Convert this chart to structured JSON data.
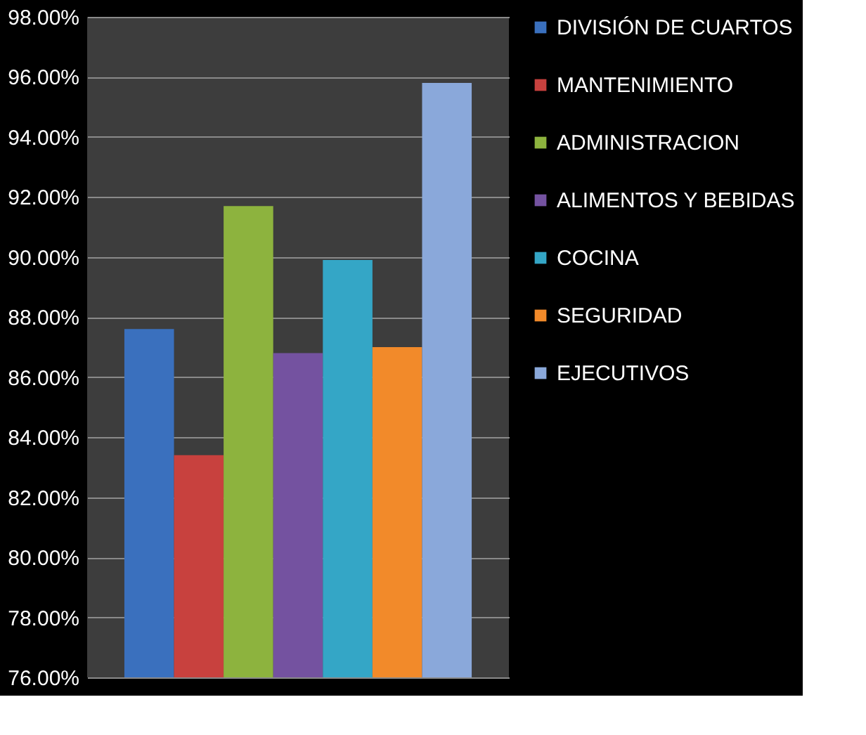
{
  "chart_data": {
    "type": "bar",
    "categories": [
      null
    ],
    "series": [
      {
        "name": "DIVISIÓN DE CUARTOS",
        "color": "#3a70be",
        "values": [
          87.6
        ]
      },
      {
        "name": "MANTENIMIENTO",
        "color": "#c8413e",
        "values": [
          83.4
        ]
      },
      {
        "name": "ADMINISTRACION",
        "color": "#8db33e",
        "values": [
          91.7
        ]
      },
      {
        "name": "ALIMENTOS Y BEBIDAS",
        "color": "#7452a0",
        "values": [
          86.8
        ]
      },
      {
        "name": "COCINA",
        "color": "#34a6c6",
        "values": [
          89.9
        ]
      },
      {
        "name": "SEGURIDAD",
        "color": "#f28a2a",
        "values": [
          87.0
        ]
      },
      {
        "name": "EJECUTIVOS",
        "color": "#8aa8da",
        "values": [
          95.8
        ]
      }
    ],
    "ylim": [
      76,
      98
    ],
    "yticks": [
      {
        "value": 76,
        "label": "76.00%"
      },
      {
        "value": 78,
        "label": "78.00%"
      },
      {
        "value": 80,
        "label": "80.00%"
      },
      {
        "value": 82,
        "label": "82.00%"
      },
      {
        "value": 84,
        "label": "84.00%"
      },
      {
        "value": 86,
        "label": "86.00%"
      },
      {
        "value": 88,
        "label": "88.00%"
      },
      {
        "value": 90,
        "label": "90.00%"
      },
      {
        "value": 92,
        "label": "92.00%"
      },
      {
        "value": 94,
        "label": "94.00%"
      },
      {
        "value": 96,
        "label": "96.00%"
      },
      {
        "value": 98,
        "label": "98.00%"
      }
    ],
    "grid": "y",
    "legend": "right",
    "tick_labels": "y"
  }
}
